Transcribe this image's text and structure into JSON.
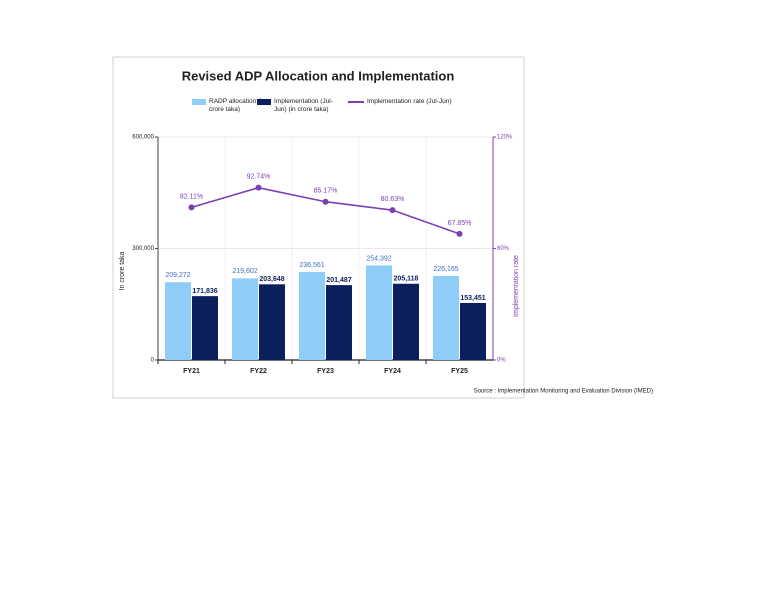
{
  "chart_data": {
    "type": "bar",
    "title": "Revised ADP Allocation and Implementation",
    "categories": [
      "FY21",
      "FY22",
      "FY23",
      "FY24",
      "FY25"
    ],
    "series": [
      {
        "name": "RADP allocation (in crore taka)",
        "type": "bar",
        "color": "#8ecdf7",
        "label_color": "#3b6fc4",
        "values": [
          209272,
          219602,
          236561,
          254392,
          226165
        ],
        "value_labels": [
          "209,272",
          "219,602",
          "236,561",
          "254,392",
          "226,165"
        ]
      },
      {
        "name": "Implementation (Jul-Jun) (in crore taka)",
        "type": "bar",
        "color": "#0b1f5c",
        "label_color": "#0b1f5c",
        "values": [
          171836,
          203648,
          201487,
          205118,
          153451
        ],
        "value_labels": [
          "171,836",
          "203,648",
          "201,487",
          "205,118",
          "153,451"
        ]
      },
      {
        "name": "Implementation rate (Jul-Jun)",
        "type": "line",
        "axis": "y2",
        "color": "#7b3fb5",
        "label_color": "#7b3fb5",
        "values": [
          82.11,
          92.74,
          85.17,
          80.63,
          67.85
        ],
        "value_labels": [
          "82.11%",
          "92.74%",
          "85.17%",
          "80.63%",
          "67.85%"
        ]
      }
    ],
    "ylabel": "In crore taka",
    "y2label": "Implementation rate",
    "ylim": [
      0,
      600000
    ],
    "yticks": [
      0,
      {
        "value": 300000,
        "label": "300,000"
      },
      {
        "value": 600000,
        "label": "600,000"
      }
    ],
    "y2lim": [
      0,
      120
    ],
    "y2ticks": [
      {
        "value": 0,
        "label": "0%"
      },
      {
        "value": 60,
        "label": "60%"
      },
      {
        "value": 120,
        "label": "120%"
      }
    ],
    "grid": true,
    "source": "Source : Implementation Monitoring and Evaluation Division (IMED)"
  }
}
